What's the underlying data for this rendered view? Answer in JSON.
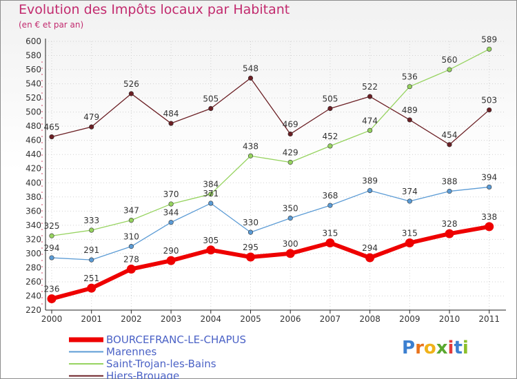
{
  "chart_data": {
    "type": "line",
    "title": "Evolution des Impôts locaux par Habitant",
    "subtitle": "(en € et par an)",
    "x": [
      "2000",
      "2001",
      "2002",
      "2003",
      "2004",
      "2005",
      "2006",
      "2007",
      "2008",
      "2009",
      "2010",
      "2011"
    ],
    "ylim": [
      220,
      600
    ],
    "ytick_step": 20,
    "grid": true,
    "legend_position": "bottom-left",
    "series": [
      {
        "name": "BOURCEFRANC-LE-CHAPUS",
        "color": "#ee0000",
        "values": [
          236,
          251,
          278,
          290,
          305,
          295,
          300,
          315,
          294,
          315,
          328,
          338
        ]
      },
      {
        "name": "Marennes",
        "color": "#5b9bd5",
        "values": [
          294,
          291,
          310,
          344,
          371,
          330,
          350,
          368,
          389,
          374,
          388,
          394
        ]
      },
      {
        "name": "Saint-Trojan-les-Bains",
        "color": "#96d35f",
        "values": [
          325,
          333,
          347,
          370,
          384,
          438,
          429,
          452,
          474,
          536,
          560,
          589
        ]
      },
      {
        "name": "Hiers-Brouage",
        "color": "#6b1f24",
        "values": [
          465,
          479,
          526,
          484,
          505,
          548,
          469,
          505,
          522,
          489,
          454,
          503
        ]
      }
    ]
  },
  "logo": {
    "letters": [
      "P",
      "r",
      "o",
      "x",
      "i",
      "t",
      "i"
    ],
    "colors": [
      "#3b7fd0",
      "#e8731c",
      "#f0b21a",
      "#5aa830",
      "#e23b3b",
      "#3b7fd0",
      "#8bbf2a"
    ]
  }
}
